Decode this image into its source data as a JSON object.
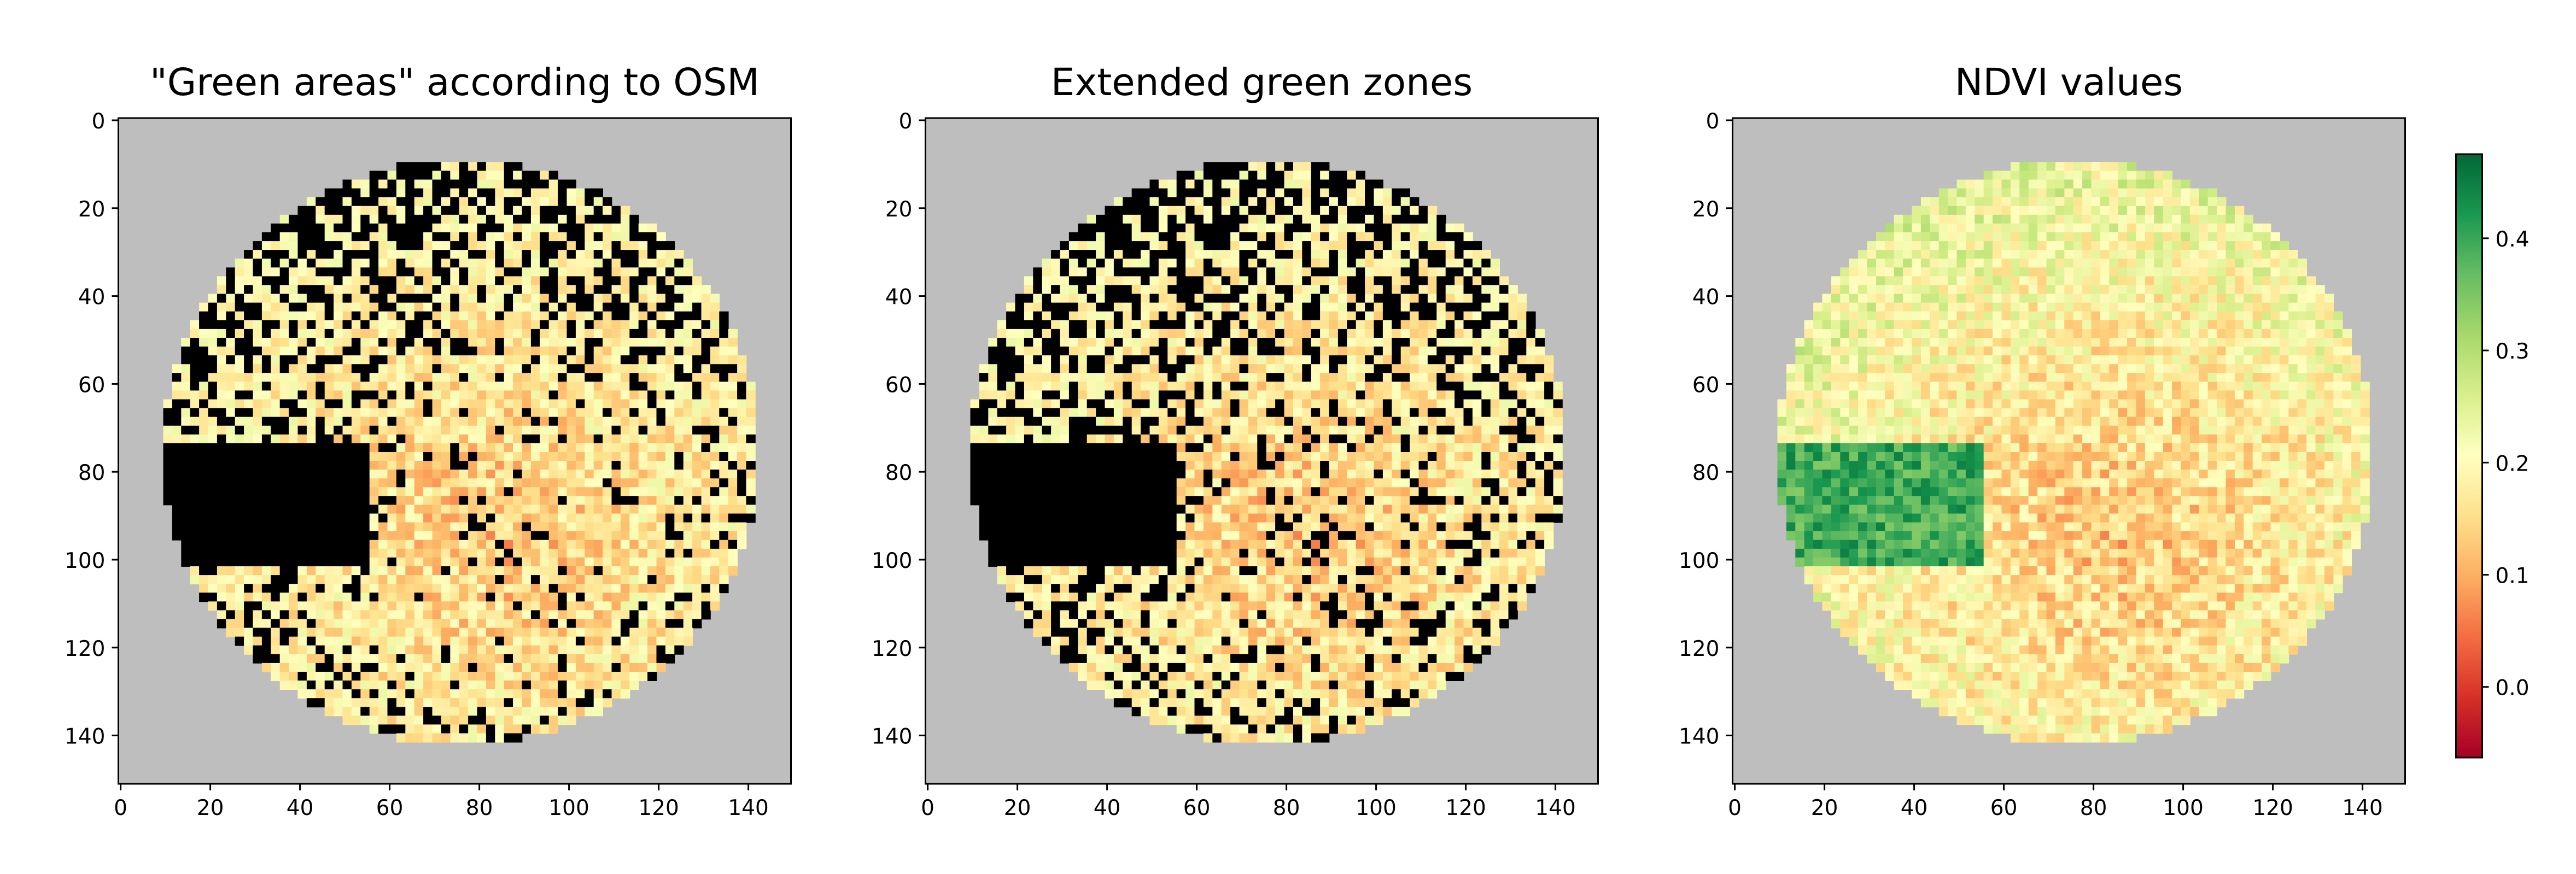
{
  "chart_data": [
    {
      "type": "image",
      "title": "\"Green areas\" according to OSM",
      "xlim": [
        -0.5,
        149.5
      ],
      "ylim": [
        151,
        -0.5
      ],
      "xticks": [
        0,
        20,
        40,
        60,
        80,
        100,
        120,
        140
      ],
      "yticks": [
        0,
        20,
        40,
        60,
        80,
        100,
        120,
        140
      ],
      "background": "#bebebe",
      "mask_color": "#000000",
      "masked": "osm"
    },
    {
      "type": "image",
      "title": "Extended green zones",
      "xlim": [
        -0.5,
        149.5
      ],
      "ylim": [
        151,
        -0.5
      ],
      "xticks": [
        0,
        20,
        40,
        60,
        80,
        100,
        120,
        140
      ],
      "yticks": [
        0,
        20,
        40,
        60,
        80,
        100,
        120,
        140
      ],
      "background": "#bebebe",
      "mask_color": "#000000",
      "masked": "extended"
    },
    {
      "type": "image",
      "title": "NDVI values",
      "xlim": [
        -0.5,
        149.5
      ],
      "ylim": [
        151,
        -0.5
      ],
      "xticks": [
        0,
        20,
        40,
        60,
        80,
        100,
        120,
        140
      ],
      "yticks": [
        0,
        20,
        40,
        60,
        80,
        100,
        120,
        140
      ],
      "background": "#bebebe",
      "colorbar": {
        "clim": [
          -0.063,
          0.475
        ],
        "ticks": [
          {
            "value": 0,
            "label": "0.0"
          },
          0.1,
          0.2,
          0.3,
          0.4
        ],
        "colors": [
          "#a50026",
          "#d73027",
          "#f46d43",
          "#fdae61",
          "#fee08b",
          "#ffffbf",
          "#d9ef8b",
          "#a6d96a",
          "#66bd63",
          "#1a9850",
          "#006837"
        ]
      }
    }
  ]
}
